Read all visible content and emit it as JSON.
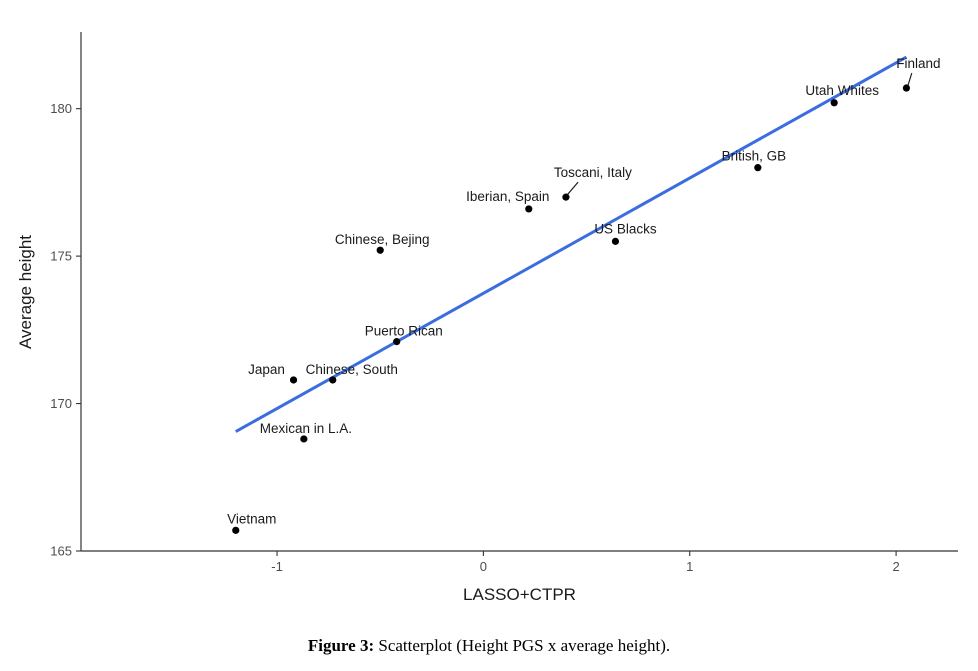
{
  "chart_data": {
    "type": "scatter",
    "xlabel": "LASSO+CTPR",
    "ylabel": "Average height",
    "xlim": [
      -1.95,
      2.3
    ],
    "ylim": [
      165.0,
      182.6
    ],
    "xticks": [
      -1,
      0,
      1,
      2
    ],
    "yticks": [
      165,
      170,
      175,
      180
    ],
    "grid": false,
    "points": [
      {
        "label": "Finland",
        "x": 2.05,
        "y": 180.7
      },
      {
        "label": "Utah Whites",
        "x": 1.7,
        "y": 180.2
      },
      {
        "label": "British, GB",
        "x": 1.33,
        "y": 178.0
      },
      {
        "label": "Toscani, Italy",
        "x": 0.4,
        "y": 177.0
      },
      {
        "label": "Iberian, Spain",
        "x": 0.22,
        "y": 176.6
      },
      {
        "label": "US Blacks",
        "x": 0.64,
        "y": 175.5
      },
      {
        "label": "Chinese, Bejing",
        "x": -0.5,
        "y": 175.2
      },
      {
        "label": "Puerto Rican",
        "x": -0.42,
        "y": 172.1
      },
      {
        "label": "Japan",
        "x": -0.92,
        "y": 170.8
      },
      {
        "label": "Chinese, South",
        "x": -0.73,
        "y": 170.8
      },
      {
        "label": "Mexican in L.A.",
        "x": -0.87,
        "y": 168.8
      },
      {
        "label": "Vietnam",
        "x": -1.2,
        "y": 165.7
      }
    ],
    "fit_line": {
      "x": [
        -1.2,
        2.05
      ],
      "y": [
        169.05,
        181.75
      ],
      "color": "#3b6de0"
    }
  },
  "caption": {
    "label": "Figure 3:",
    "text": " Scatterplot (Height PGS x average height)."
  }
}
